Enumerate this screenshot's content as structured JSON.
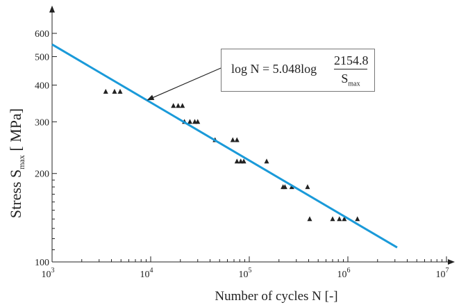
{
  "chart_data": {
    "type": "scatter",
    "xscale": "log",
    "yscale": "log",
    "xlabel": "Number of cycles N [-]",
    "ylabel": {
      "text": "Stress S",
      "subscript": "max",
      "unit": " [ MPa]"
    },
    "xlim": [
      1000,
      10000000
    ],
    "ylim": [
      100,
      650
    ],
    "x_ticks": [
      {
        "value": 1000,
        "base": "10",
        "exp": "3"
      },
      {
        "value": 10000,
        "base": "10",
        "exp": "4"
      },
      {
        "value": 100000,
        "base": "10",
        "exp": "5"
      },
      {
        "value": 1000000,
        "base": "10",
        "exp": "6"
      },
      {
        "value": 10000000,
        "base": "10",
        "exp": "7"
      }
    ],
    "y_ticks": [
      {
        "value": 100,
        "label": "100"
      },
      {
        "value": 200,
        "label": "200"
      },
      {
        "value": 300,
        "label": "300"
      },
      {
        "value": 400,
        "label": "400"
      },
      {
        "value": 500,
        "label": "500"
      },
      {
        "value": 600,
        "label": "600"
      }
    ],
    "series": [
      {
        "kind": "scatter",
        "marker": "triangle",
        "color": "#222222",
        "points": [
          {
            "x": 3500,
            "y": 380
          },
          {
            "x": 4300,
            "y": 380
          },
          {
            "x": 4900,
            "y": 380
          },
          {
            "x": 17000,
            "y": 340
          },
          {
            "x": 19000,
            "y": 340
          },
          {
            "x": 21000,
            "y": 340
          },
          {
            "x": 22000,
            "y": 300
          },
          {
            "x": 25000,
            "y": 300
          },
          {
            "x": 28000,
            "y": 300
          },
          {
            "x": 30000,
            "y": 300
          },
          {
            "x": 45000,
            "y": 260
          },
          {
            "x": 68000,
            "y": 260
          },
          {
            "x": 75000,
            "y": 260
          },
          {
            "x": 75000,
            "y": 220
          },
          {
            "x": 82000,
            "y": 220
          },
          {
            "x": 88000,
            "y": 220
          },
          {
            "x": 150000,
            "y": 220
          },
          {
            "x": 220000,
            "y": 180
          },
          {
            "x": 230000,
            "y": 180
          },
          {
            "x": 270000,
            "y": 180
          },
          {
            "x": 390000,
            "y": 180
          },
          {
            "x": 410000,
            "y": 140
          },
          {
            "x": 700000,
            "y": 140
          },
          {
            "x": 820000,
            "y": 140
          },
          {
            "x": 920000,
            "y": 140
          },
          {
            "x": 1250000,
            "y": 140
          }
        ]
      },
      {
        "kind": "line",
        "color": "#1a9ad9",
        "points": [
          {
            "x": 1000,
            "y": 550
          },
          {
            "x": 3160000,
            "y": 112
          }
        ]
      }
    ],
    "annotation": {
      "lhs": "log N = 5.048log",
      "numerator": "2154.8",
      "denominator": "S",
      "denominator_sub": "max",
      "arrow_target": {
        "x": 9000,
        "y": 360
      }
    }
  }
}
